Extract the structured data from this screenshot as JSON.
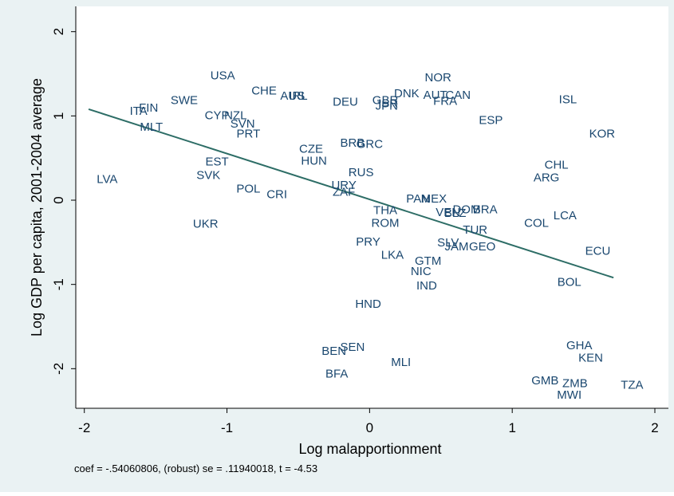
{
  "chart_data": {
    "type": "scatter",
    "xlabel": "Log malapportionment",
    "ylabel": "Log GDP per capita, 2001-2004 average",
    "note": "coef = -.54060806, (robust) se = .11940018, t = -4.53",
    "color": "#1a476f",
    "labels": [
      "USA",
      "CHE",
      "AUS",
      "IRL",
      "SWE",
      "FIN",
      "ITA",
      "MLT",
      "CYP",
      "NZL",
      "SVN",
      "PRT",
      "DEU",
      "GBR",
      "ISR",
      "JPN",
      "DNK",
      "AUT",
      "CAN",
      "NOR",
      "FRA",
      "ESP",
      "ISL",
      "KOR",
      "CHL",
      "ARG",
      "CZE",
      "HUN",
      "BRB",
      "GRC",
      "EST",
      "SVK",
      "LVA",
      "POL",
      "CRI",
      "RUS",
      "URY",
      "ZAF",
      "PAN",
      "MEX",
      "VEN",
      "DOM",
      "BRA",
      "BLZ",
      "THA",
      "ROM",
      "TUR",
      "COL",
      "LCA",
      "UKR",
      "PRY",
      "SLV",
      "JAM",
      "GEO",
      "ECU",
      "LKA",
      "GTM",
      "NIC",
      "IND",
      "BOL",
      "HND",
      "SEN",
      "BEN",
      "BFA",
      "MLI",
      "GHA",
      "KEN",
      "GMB",
      "ZMB",
      "TZA",
      "MWI"
    ],
    "x": [
      -1.03,
      -0.74,
      -0.54,
      -0.5,
      -1.3,
      -1.55,
      -1.62,
      -1.53,
      -1.07,
      -0.94,
      -0.89,
      -0.85,
      -0.17,
      0.11,
      0.13,
      0.12,
      0.26,
      0.46,
      0.62,
      0.48,
      0.53,
      0.85,
      1.39,
      1.63,
      1.31,
      1.24,
      -0.41,
      -0.39,
      -0.12,
      0.0,
      -1.07,
      -1.13,
      -1.84,
      -0.85,
      -0.65,
      -0.06,
      -0.18,
      -0.18,
      0.34,
      0.45,
      0.55,
      0.68,
      0.81,
      0.6,
      0.11,
      0.11,
      0.74,
      1.17,
      1.37,
      -1.15,
      -0.01,
      0.55,
      0.61,
      0.79,
      1.6,
      0.16,
      0.41,
      0.36,
      0.4,
      1.4,
      -0.01,
      -0.12,
      -0.25,
      -0.23,
      0.22,
      1.47,
      1.55,
      1.23,
      1.44,
      1.84,
      1.4
    ],
    "values": [
      1.47,
      1.29,
      1.23,
      1.23,
      1.18,
      1.09,
      1.05,
      0.86,
      1.0,
      1.0,
      0.9,
      0.78,
      1.16,
      1.18,
      1.14,
      1.11,
      1.26,
      1.24,
      1.24,
      1.45,
      1.17,
      0.94,
      1.19,
      0.78,
      0.41,
      0.26,
      0.6,
      0.46,
      0.67,
      0.66,
      0.45,
      0.29,
      0.24,
      0.13,
      0.06,
      0.32,
      0.17,
      0.09,
      0.01,
      0.01,
      -0.15,
      -0.12,
      -0.12,
      -0.16,
      -0.13,
      -0.28,
      -0.36,
      -0.28,
      -0.19,
      -0.29,
      -0.5,
      -0.51,
      -0.56,
      -0.56,
      -0.61,
      -0.66,
      -0.73,
      -0.85,
      -1.02,
      -0.98,
      -1.24,
      -1.75,
      -1.8,
      -2.07,
      -1.93,
      -1.73,
      -1.88,
      -2.15,
      -2.18,
      -2.2,
      -2.32
    ],
    "fit_line": {
      "color": "#2d6d66",
      "x": [
        -1.97,
        1.71
      ],
      "values": [
        1.08,
        -0.92
      ]
    },
    "xlim": [
      -2.06,
      2.095
    ],
    "ylim": [
      -2.47,
      2.3
    ],
    "xticks": [
      -2,
      -1,
      0,
      1,
      2
    ],
    "yticks": [
      -2,
      -1,
      0,
      1,
      2
    ]
  }
}
